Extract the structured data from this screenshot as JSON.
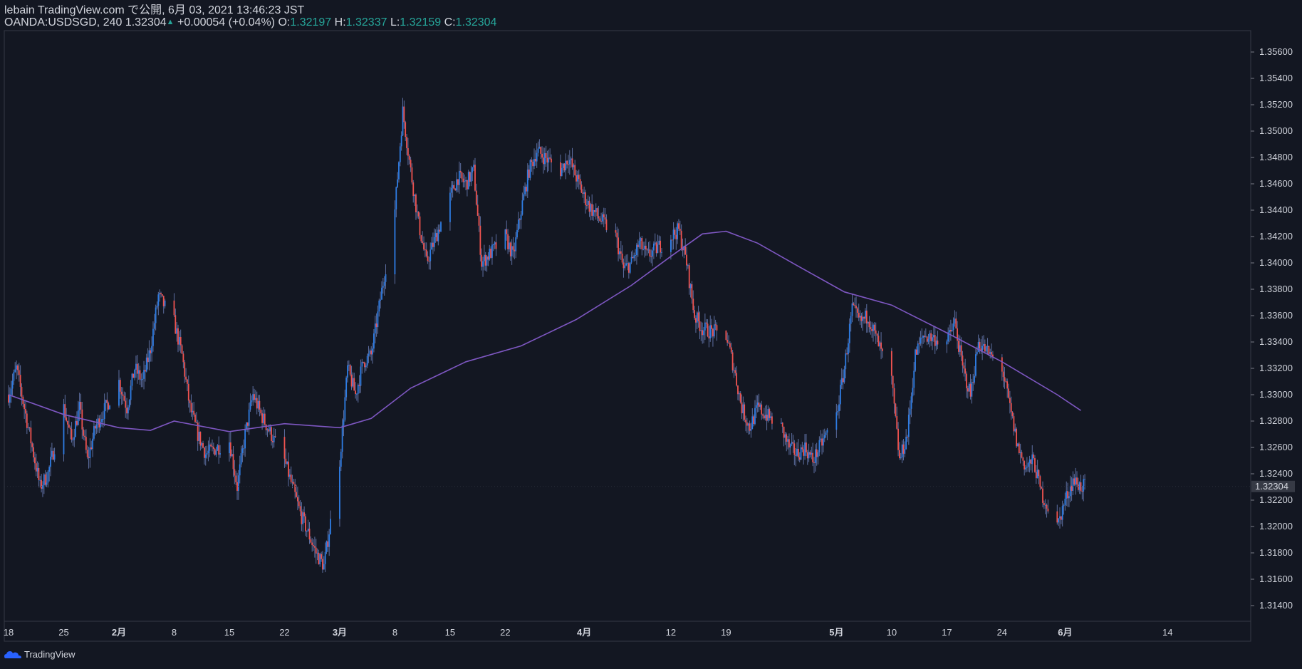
{
  "header": {
    "line1": "lebain TradingView.com で公開, 6月 03, 2021 13:46:23 JST",
    "symbol": "OANDA:USDSGD, 240 1.32304",
    "arrow": "▲",
    "change": "+0.00054 (+0.04%)",
    "o_label": "O:",
    "o_value": "1.32197",
    "h_label": "H:",
    "h_value": "1.32337",
    "l_label": "L:",
    "l_value": "1.32159",
    "c_label": "C:",
    "c_value": "1.32304"
  },
  "brand": {
    "name": "TradingView",
    "icon": "tradingview-logo-icon"
  },
  "colors": {
    "background": "#131722",
    "up": "#2e7de4",
    "down": "#ef5350",
    "ma": "#7e57c2",
    "grid": "#363a45",
    "price_tag": "#363a45"
  },
  "chart_data": {
    "type": "candlestick-line",
    "symbol": "OANDA:USDSGD",
    "interval": "240",
    "last_price": "1.32304",
    "y_ticks": [
      "1.35600",
      "1.35400",
      "1.35200",
      "1.35000",
      "1.34800",
      "1.34600",
      "1.34400",
      "1.34200",
      "1.34000",
      "1.33800",
      "1.33600",
      "1.33400",
      "1.33200",
      "1.33000",
      "1.32800",
      "1.32600",
      "1.32400",
      "1.32200",
      "1.32000",
      "1.31800",
      "1.31600",
      "1.31400"
    ],
    "y_tick_values": [
      1.356,
      1.354,
      1.352,
      1.35,
      1.348,
      1.346,
      1.344,
      1.342,
      1.34,
      1.338,
      1.336,
      1.334,
      1.332,
      1.33,
      1.328,
      1.326,
      1.324,
      1.322,
      1.32,
      1.318,
      1.316,
      1.314
    ],
    "ylim": [
      1.3128,
      1.3573
    ],
    "x_ticks": [
      {
        "label": "18",
        "date": "2021-01-18",
        "bold": false
      },
      {
        "label": "25",
        "date": "2021-01-25",
        "bold": false
      },
      {
        "label": "2月",
        "date": "2021-02-01",
        "bold": true
      },
      {
        "label": "8",
        "date": "2021-02-08",
        "bold": false
      },
      {
        "label": "15",
        "date": "2021-02-15",
        "bold": false
      },
      {
        "label": "22",
        "date": "2021-02-22",
        "bold": false
      },
      {
        "label": "3月",
        "date": "2021-03-01",
        "bold": true
      },
      {
        "label": "8",
        "date": "2021-03-08",
        "bold": false
      },
      {
        "label": "15",
        "date": "2021-03-15",
        "bold": false
      },
      {
        "label": "22",
        "date": "2021-03-22",
        "bold": false
      },
      {
        "label": "4月",
        "date": "2021-04-01",
        "bold": true
      },
      {
        "label": "12",
        "date": "2021-04-12",
        "bold": false
      },
      {
        "label": "19",
        "date": "2021-04-19",
        "bold": false
      },
      {
        "label": "5月",
        "date": "2021-05-03",
        "bold": true
      },
      {
        "label": "10",
        "date": "2021-05-10",
        "bold": false
      },
      {
        "label": "17",
        "date": "2021-05-17",
        "bold": false
      },
      {
        "label": "24",
        "date": "2021-05-24",
        "bold": false
      },
      {
        "label": "6月",
        "date": "2021-06-01",
        "bold": true
      },
      {
        "label": "14",
        "date": "2021-06-14",
        "bold": false
      }
    ],
    "close_path": [
      [
        "2021-01-18",
        1.33
      ],
      [
        "2021-01-19",
        1.332
      ],
      [
        "2021-01-20",
        1.329
      ],
      [
        "2021-01-21",
        1.326
      ],
      [
        "2021-01-22",
        1.323
      ],
      [
        "2021-01-23",
        1.324
      ],
      [
        "2021-01-25",
        1.329
      ],
      [
        "2021-01-26",
        1.3265
      ],
      [
        "2021-01-27",
        1.329
      ],
      [
        "2021-01-28",
        1.325
      ],
      [
        "2021-01-29",
        1.3275
      ],
      [
        "2021-02-01",
        1.331
      ],
      [
        "2021-02-02",
        1.329
      ],
      [
        "2021-02-03",
        1.332
      ],
      [
        "2021-02-04",
        1.331
      ],
      [
        "2021-02-05",
        1.3335
      ],
      [
        "2021-02-06",
        1.3375
      ],
      [
        "2021-02-08",
        1.3355
      ],
      [
        "2021-02-09",
        1.333
      ],
      [
        "2021-02-10",
        1.329
      ],
      [
        "2021-02-11",
        1.327
      ],
      [
        "2021-02-12",
        1.3255
      ],
      [
        "2021-02-15",
        1.3265
      ],
      [
        "2021-02-16",
        1.323
      ],
      [
        "2021-02-17",
        1.327
      ],
      [
        "2021-02-18",
        1.33
      ],
      [
        "2021-02-19",
        1.3285
      ],
      [
        "2021-02-22",
        1.325
      ],
      [
        "2021-02-23",
        1.323
      ],
      [
        "2021-02-24",
        1.321
      ],
      [
        "2021-02-25",
        1.3195
      ],
      [
        "2021-02-26",
        1.318
      ],
      [
        "2021-02-27",
        1.317
      ],
      [
        "2021-03-01",
        1.325
      ],
      [
        "2021-03-02",
        1.332
      ],
      [
        "2021-03-03",
        1.33
      ],
      [
        "2021-03-04",
        1.3325
      ],
      [
        "2021-03-05",
        1.333
      ],
      [
        "2021-03-08",
        1.344
      ],
      [
        "2021-03-09",
        1.3515
      ],
      [
        "2021-03-10",
        1.347
      ],
      [
        "2021-03-11",
        1.343
      ],
      [
        "2021-03-12",
        1.34
      ],
      [
        "2021-03-15",
        1.345
      ],
      [
        "2021-03-16",
        1.3465
      ],
      [
        "2021-03-17",
        1.346
      ],
      [
        "2021-03-18",
        1.347
      ],
      [
        "2021-03-19",
        1.34
      ],
      [
        "2021-03-22",
        1.342
      ],
      [
        "2021-03-23",
        1.3405
      ],
      [
        "2021-03-24",
        1.344
      ],
      [
        "2021-03-25",
        1.347
      ],
      [
        "2021-03-26",
        1.3485
      ],
      [
        "2021-03-29",
        1.347
      ],
      [
        "2021-03-30",
        1.348
      ],
      [
        "2021-03-31",
        1.3465
      ],
      [
        "2021-04-01",
        1.345
      ],
      [
        "2021-04-02",
        1.344
      ],
      [
        "2021-04-05",
        1.342
      ],
      [
        "2021-04-06",
        1.3395
      ],
      [
        "2021-04-07",
        1.34
      ],
      [
        "2021-04-08",
        1.3415
      ],
      [
        "2021-04-09",
        1.3405
      ],
      [
        "2021-04-12",
        1.342
      ],
      [
        "2021-04-13",
        1.3425
      ],
      [
        "2021-04-14",
        1.34
      ],
      [
        "2021-04-15",
        1.336
      ],
      [
        "2021-04-16",
        1.335
      ],
      [
        "2021-04-19",
        1.3345
      ],
      [
        "2021-04-20",
        1.332
      ],
      [
        "2021-04-21",
        1.329
      ],
      [
        "2021-04-22",
        1.3275
      ],
      [
        "2021-04-23",
        1.329
      ],
      [
        "2021-04-26",
        1.3275
      ],
      [
        "2021-04-27",
        1.326
      ],
      [
        "2021-04-28",
        1.3255
      ],
      [
        "2021-04-29",
        1.326
      ],
      [
        "2021-04-30",
        1.325
      ],
      [
        "2021-05-03",
        1.3285
      ],
      [
        "2021-05-04",
        1.332
      ],
      [
        "2021-05-05",
        1.3365
      ],
      [
        "2021-05-06",
        1.3355
      ],
      [
        "2021-05-07",
        1.336
      ],
      [
        "2021-05-10",
        1.331
      ],
      [
        "2021-05-11",
        1.325
      ],
      [
        "2021-05-12",
        1.327
      ],
      [
        "2021-05-13",
        1.333
      ],
      [
        "2021-05-14",
        1.3345
      ],
      [
        "2021-05-17",
        1.334
      ],
      [
        "2021-05-18",
        1.3355
      ],
      [
        "2021-05-19",
        1.332
      ],
      [
        "2021-05-20",
        1.33
      ],
      [
        "2021-05-21",
        1.334
      ],
      [
        "2021-05-24",
        1.332
      ],
      [
        "2021-05-25",
        1.329
      ],
      [
        "2021-05-26",
        1.326
      ],
      [
        "2021-05-27",
        1.3245
      ],
      [
        "2021-05-28",
        1.325
      ],
      [
        "2021-05-29",
        1.3225
      ],
      [
        "2021-05-31",
        1.32
      ],
      [
        "2021-06-01",
        1.322
      ],
      [
        "2021-06-02",
        1.3235
      ],
      [
        "2021-06-03",
        1.32304
      ]
    ],
    "moving_average": [
      [
        "2021-01-18",
        1.33
      ],
      [
        "2021-01-25",
        1.3285
      ],
      [
        "2021-02-01",
        1.3275
      ],
      [
        "2021-02-05",
        1.3273
      ],
      [
        "2021-02-08",
        1.328
      ],
      [
        "2021-02-15",
        1.3272
      ],
      [
        "2021-02-22",
        1.3278
      ],
      [
        "2021-03-01",
        1.3275
      ],
      [
        "2021-03-05",
        1.3282
      ],
      [
        "2021-03-10",
        1.3305
      ],
      [
        "2021-03-17",
        1.3325
      ],
      [
        "2021-03-24",
        1.3337
      ],
      [
        "2021-03-31",
        1.3357
      ],
      [
        "2021-04-07",
        1.3383
      ],
      [
        "2021-04-12",
        1.3405
      ],
      [
        "2021-04-16",
        1.3422
      ],
      [
        "2021-04-19",
        1.3424
      ],
      [
        "2021-04-23",
        1.3415
      ],
      [
        "2021-04-28",
        1.3398
      ],
      [
        "2021-05-04",
        1.3378
      ],
      [
        "2021-05-10",
        1.3368
      ],
      [
        "2021-05-17",
        1.3347
      ],
      [
        "2021-05-24",
        1.3325
      ],
      [
        "2021-05-31",
        1.33
      ],
      [
        "2021-06-03",
        1.3288
      ]
    ]
  }
}
